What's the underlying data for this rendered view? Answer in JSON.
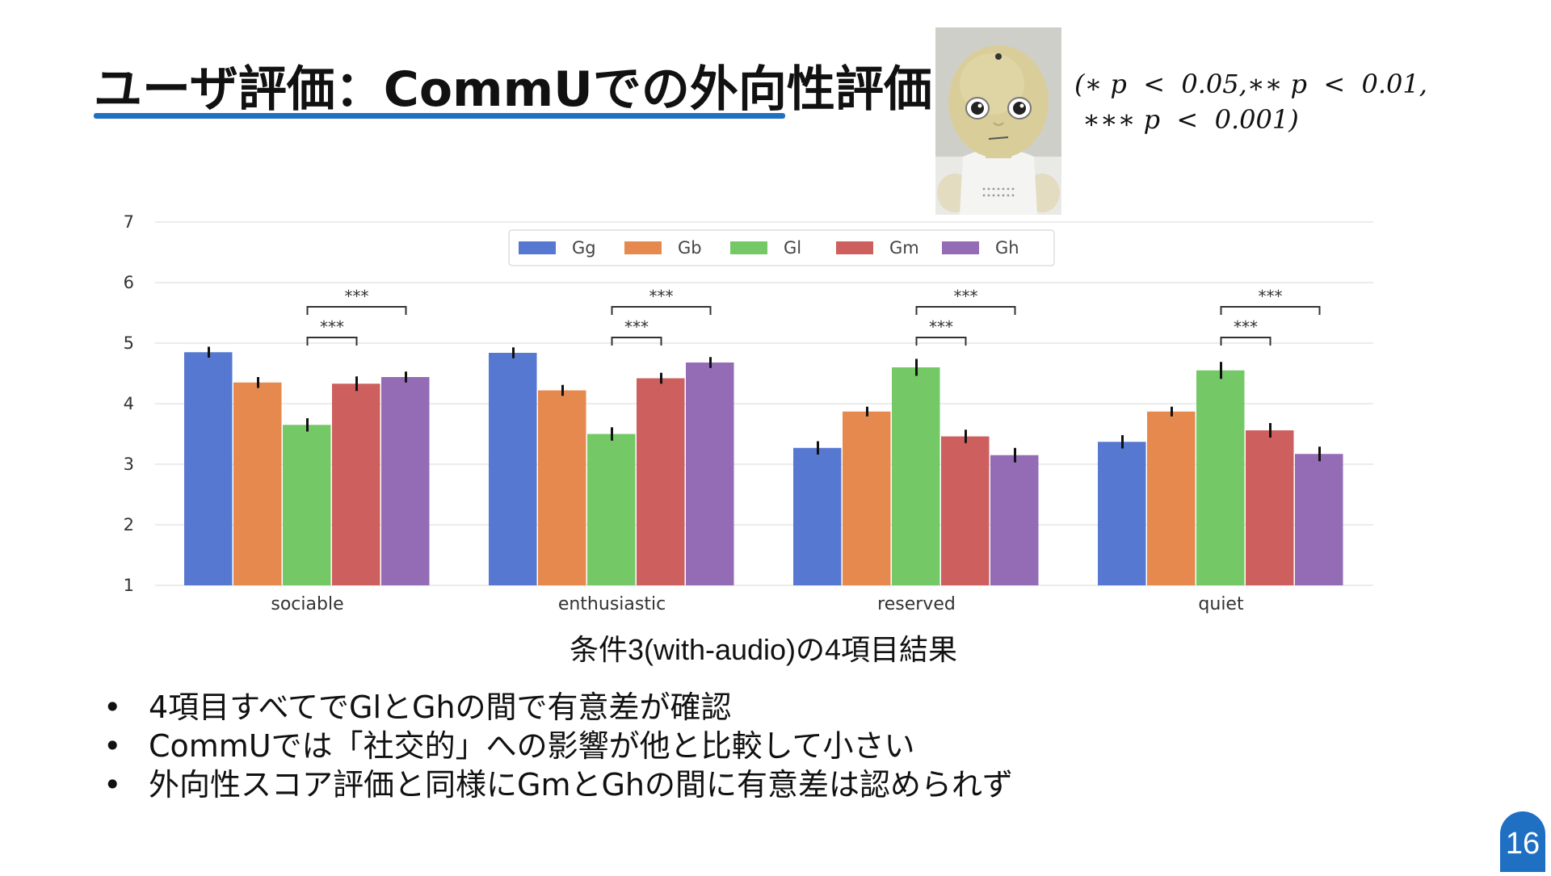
{
  "slide": {
    "title": "ユーザ評価：CommUでの外向性評価",
    "significance_note_line1": "(∗ p  <  0.05,∗∗ p  <  0.01,",
    "significance_note_line2": " ∗∗∗ p  <  0.001)",
    "caption": "条件3(with-audio)の4項目結果",
    "bullets": [
      "4項目すべてでGlとGhの間で有意差が確認",
      "CommUでは「社交的」への影響が他と比較して小さい",
      "外向性スコア評価と同様にGmとGhの間に有意差は認められず"
    ],
    "bullet_symbol": "•",
    "page_number": "16",
    "image_icon": "robot-photo"
  },
  "colors": {
    "accent": "#1f6fc2",
    "Gg": "#5778d0",
    "Gb": "#e5894f",
    "Gl": "#74c966",
    "Gm": "#cd5f5f",
    "Gh": "#936cb5"
  },
  "chart_data": {
    "type": "bar",
    "categories": [
      "sociable",
      "enthusiastic",
      "reserved",
      "quiet"
    ],
    "series": [
      {
        "name": "Gg",
        "values": [
          4.85,
          4.84,
          3.27,
          3.37
        ],
        "err": [
          0.09,
          0.09,
          0.11,
          0.11
        ]
      },
      {
        "name": "Gb",
        "values": [
          4.35,
          4.22,
          3.87,
          3.87
        ],
        "err": [
          0.09,
          0.09,
          0.08,
          0.08
        ]
      },
      {
        "name": "Gl",
        "values": [
          3.65,
          3.5,
          4.6,
          4.55
        ],
        "err": [
          0.11,
          0.11,
          0.14,
          0.14
        ]
      },
      {
        "name": "Gm",
        "values": [
          4.33,
          4.42,
          3.46,
          3.56
        ],
        "err": [
          0.12,
          0.09,
          0.11,
          0.12
        ]
      },
      {
        "name": "Gh",
        "values": [
          4.44,
          4.68,
          3.15,
          3.17
        ],
        "err": [
          0.09,
          0.09,
          0.12,
          0.12
        ]
      }
    ],
    "yticks": [
      "1",
      "2",
      "3",
      "4",
      "5",
      "6",
      "7"
    ],
    "ylim": [
      1,
      7
    ],
    "significance": [
      {
        "category": 0,
        "from": "Gl",
        "to": "Gm",
        "label": "***"
      },
      {
        "category": 0,
        "from": "Gl",
        "to": "Gh",
        "label": "***"
      },
      {
        "category": 1,
        "from": "Gl",
        "to": "Gm",
        "label": "***"
      },
      {
        "category": 1,
        "from": "Gl",
        "to": "Gh",
        "label": "***"
      },
      {
        "category": 2,
        "from": "Gl",
        "to": "Gm",
        "label": "***"
      },
      {
        "category": 2,
        "from": "Gl",
        "to": "Gh",
        "label": "***"
      },
      {
        "category": 3,
        "from": "Gl",
        "to": "Gm",
        "label": "***"
      },
      {
        "category": 3,
        "from": "Gl",
        "to": "Gh",
        "label": "***"
      }
    ],
    "legend_placement": "top-center",
    "grid": "horizontal"
  }
}
